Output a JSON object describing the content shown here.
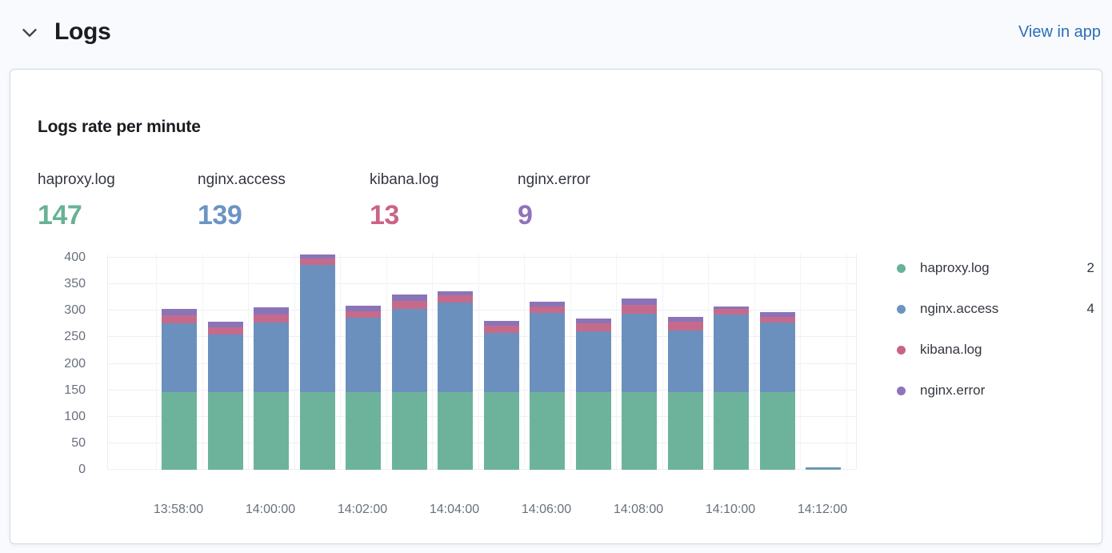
{
  "header": {
    "title": "Logs",
    "view_in_app_label": "View in app"
  },
  "panel": {
    "title": "Logs rate per minute",
    "metrics": [
      {
        "label": "haproxy.log",
        "value": "147",
        "color": "#68B296"
      },
      {
        "label": "nginx.access",
        "value": "139",
        "color": "#6C94C3"
      },
      {
        "label": "kibana.log",
        "value": "13",
        "color": "#CA6487"
      },
      {
        "label": "nginx.error",
        "value": "9",
        "color": "#8F73BB"
      }
    ],
    "legend": [
      {
        "label": "haproxy.log",
        "value": "2",
        "color": "#68B296"
      },
      {
        "label": "nginx.access",
        "value": "4",
        "color": "#6C94C3"
      },
      {
        "label": "kibana.log",
        "value": "",
        "color": "#CA6487"
      },
      {
        "label": "nginx.error",
        "value": "",
        "color": "#8F73BB"
      }
    ]
  },
  "chart_data": {
    "type": "bar",
    "stacked": true,
    "title": "Logs rate per minute",
    "xlabel": "",
    "ylabel": "",
    "ylim": [
      0,
      400
    ],
    "yticks": [
      0,
      50,
      100,
      150,
      200,
      250,
      300,
      350,
      400
    ],
    "grid": true,
    "legend_position": "right",
    "categories": [
      "13:58:00",
      "13:59:00",
      "14:00:00",
      "14:01:00",
      "14:02:00",
      "14:03:00",
      "14:04:00",
      "14:05:00",
      "14:06:00",
      "14:07:00",
      "14:08:00",
      "14:09:00",
      "14:10:00",
      "14:11:00",
      "14:12:00"
    ],
    "xtick_labels": [
      "13:58:00",
      "14:00:00",
      "14:02:00",
      "14:04:00",
      "14:06:00",
      "14:08:00",
      "14:10:00",
      "14:12:00"
    ],
    "series": [
      {
        "name": "haproxy.log",
        "color": "#6DB39B",
        "values": [
          147,
          147,
          147,
          147,
          147,
          147,
          147,
          147,
          147,
          147,
          147,
          147,
          147,
          147,
          1
        ]
      },
      {
        "name": "nginx.access",
        "color": "#6B90BD",
        "values": [
          130,
          108,
          131,
          239,
          140,
          156,
          169,
          111,
          149,
          114,
          147,
          116,
          146,
          131,
          4
        ]
      },
      {
        "name": "kibana.log",
        "color": "#C66A8C",
        "values": [
          14,
          13,
          15,
          13,
          12,
          15,
          13,
          14,
          12,
          16,
          17,
          16,
          10,
          11,
          0
        ]
      },
      {
        "name": "nginx.error",
        "color": "#8A74B8",
        "values": [
          12,
          12,
          14,
          7,
          10,
          13,
          8,
          9,
          9,
          8,
          12,
          10,
          5,
          8,
          0
        ]
      }
    ]
  }
}
